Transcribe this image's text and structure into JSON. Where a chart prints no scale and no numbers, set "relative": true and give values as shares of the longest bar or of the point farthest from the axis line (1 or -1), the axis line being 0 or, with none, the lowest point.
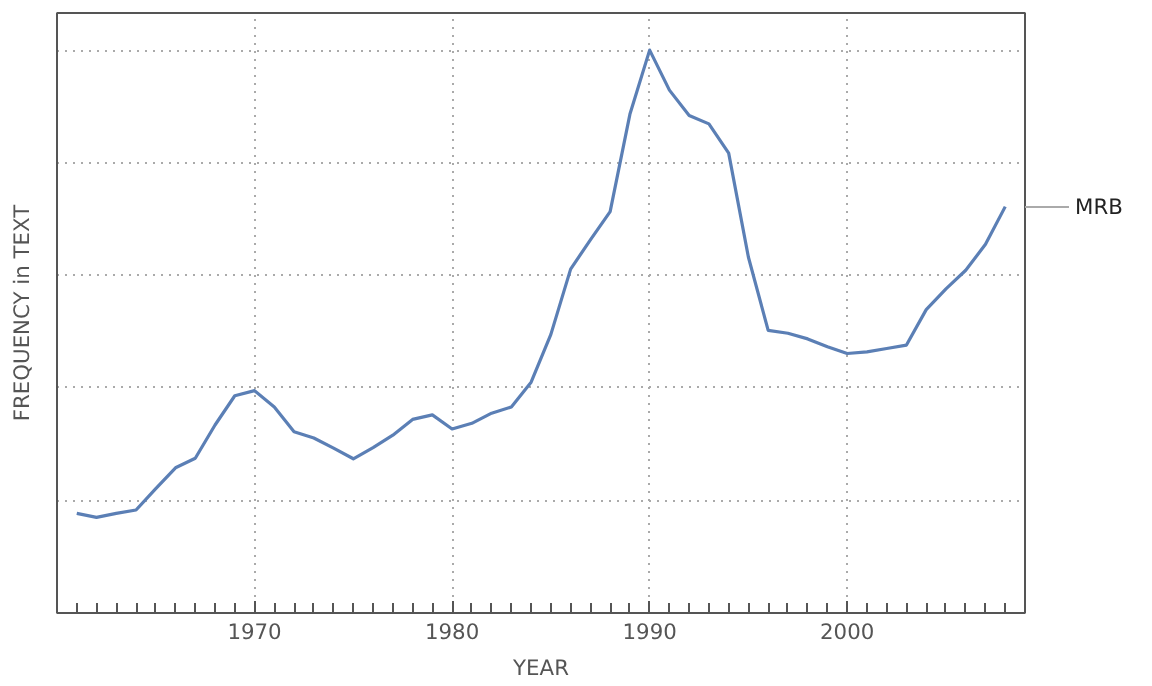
{
  "chart_data": {
    "type": "line",
    "xlabel": "YEAR",
    "ylabel": "FREQUENCY in TEXT",
    "relative": true,
    "x": [
      1961,
      1962,
      1963,
      1964,
      1965,
      1966,
      1967,
      1968,
      1969,
      1970,
      1971,
      1972,
      1973,
      1974,
      1975,
      1976,
      1977,
      1978,
      1979,
      1980,
      1981,
      1982,
      1983,
      1984,
      1985,
      1986,
      1987,
      1988,
      1989,
      1990,
      1991,
      1992,
      1993,
      1994,
      1995,
      1996,
      1997,
      1998,
      1999,
      2000,
      2001,
      2002,
      2003,
      2004,
      2005,
      2006,
      2007,
      2008
    ],
    "series": [
      {
        "name": "MRB",
        "color": "#5b7fb5",
        "values": [
          0.177,
          0.17,
          0.177,
          0.183,
          0.221,
          0.258,
          0.275,
          0.334,
          0.386,
          0.395,
          0.366,
          0.322,
          0.311,
          0.293,
          0.274,
          0.294,
          0.316,
          0.344,
          0.352,
          0.327,
          0.337,
          0.355,
          0.366,
          0.41,
          0.495,
          0.611,
          0.663,
          0.713,
          0.886,
          1,
          0.929,
          0.884,
          0.869,
          0.817,
          0.632,
          0.502,
          0.497,
          0.487,
          0.473,
          0.461,
          0.464,
          0.47,
          0.476,
          0.539,
          0.576,
          0.609,
          0.655,
          0.722
        ]
      }
    ],
    "xlim": [
      1960,
      2009
    ],
    "xticks": [
      1970,
      1980,
      1990,
      2000
    ],
    "grid": true,
    "line_style": "solid",
    "marker": "none"
  }
}
